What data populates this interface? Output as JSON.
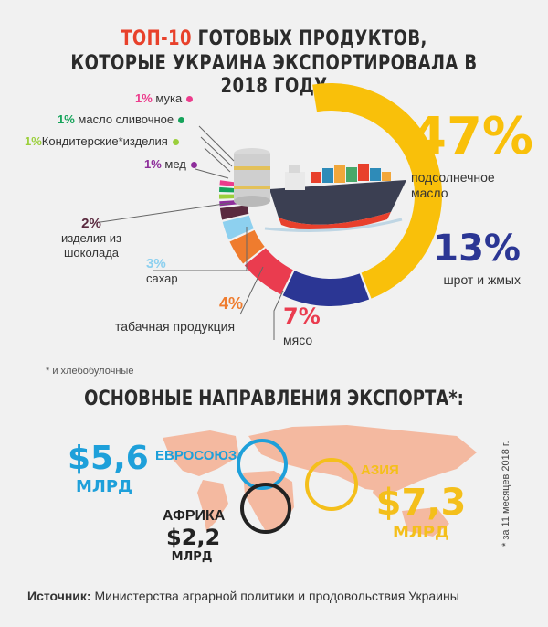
{
  "title": {
    "accent": "ТОП-10",
    "line1_rest": " ГОТОВЫХ ПРОДУКТОВ,",
    "line2": "КОТОРЫЕ УКРАИНА ЭКСПОРТИРОВАЛА В 2018 ГОДУ"
  },
  "chart_data": {
    "type": "pie",
    "title": "ТОП-10 ГОТОВЫХ ПРОДУКТОВ, КОТОРЫЕ УКРАИНА ЭКСПОРТИРОВАЛА В 2018 ГОДУ",
    "unit": "%",
    "slices": [
      {
        "label": "подсолнечное масло",
        "value": 47,
        "value_label": "47%",
        "color": "#f9c00a"
      },
      {
        "label": "шрот и жмых",
        "value": 13,
        "value_label": "13%",
        "color": "#2b3694"
      },
      {
        "label": "мясо",
        "value": 7,
        "value_label": "7%",
        "color": "#ea3c4f"
      },
      {
        "label": "табачная продукция",
        "value": 4,
        "value_label": "4%",
        "color": "#ef7c2e"
      },
      {
        "label": "сахар",
        "value": 3,
        "value_label": "3%",
        "color": "#8dd0ef"
      },
      {
        "label": "изделия из шоколада",
        "value": 2,
        "value_label": "2%",
        "color": "#5a2a3f"
      },
      {
        "label": "мед",
        "value": 1,
        "value_label": "1%",
        "color": "#8e2e9b"
      },
      {
        "label": "Кондитерские*изделия",
        "value": 1,
        "value_label": "1%",
        "color": "#9bcf3c"
      },
      {
        "label": "масло сливочное",
        "value": 1,
        "value_label": "1%",
        "color": "#15a35a"
      },
      {
        "label": "мука",
        "value": 1,
        "value_label": "1%",
        "color": "#ec3c8c"
      }
    ]
  },
  "footnote": "* и хлебобулочные",
  "section": {
    "title": "ОСНОВНЫЕ НАПРАВЛЕНИЯ ЭКСПОРТА*:",
    "regions": [
      {
        "name": "ЕВРОСОЮЗ",
        "amount": "$5,6",
        "unit": "МЛРД",
        "color": "#1ea0da"
      },
      {
        "name": "АФРИКА",
        "amount": "$2,2",
        "unit": "МЛРД",
        "color": "#222222"
      },
      {
        "name": "АЗИЯ",
        "amount": "$7,3",
        "unit": "МЛРД",
        "color": "#f4bf1b"
      }
    ],
    "vertical_note": "* за 11 месяцев 2018 г."
  },
  "source": {
    "label": "Источник:",
    "text": " Министерства аграрной политики и продовольствия Украины"
  }
}
